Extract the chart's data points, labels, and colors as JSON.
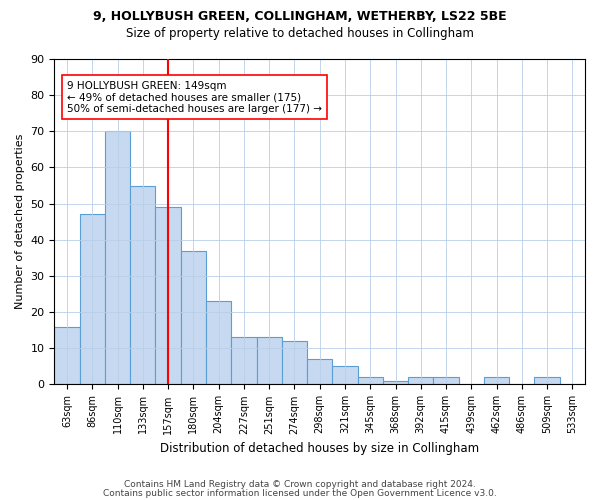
{
  "title1": "9, HOLLYBUSH GREEN, COLLINGHAM, WETHERBY, LS22 5BE",
  "title2": "Size of property relative to detached houses in Collingham",
  "xlabel": "Distribution of detached houses by size in Collingham",
  "ylabel": "Number of detached properties",
  "categories": [
    "63sqm",
    "86sqm",
    "110sqm",
    "133sqm",
    "157sqm",
    "180sqm",
    "204sqm",
    "227sqm",
    "251sqm",
    "274sqm",
    "298sqm",
    "321sqm",
    "345sqm",
    "368sqm",
    "392sqm",
    "415sqm",
    "439sqm",
    "462sqm",
    "486sqm",
    "509sqm",
    "533sqm"
  ],
  "values": [
    16,
    47,
    70,
    55,
    49,
    37,
    23,
    13,
    13,
    12,
    7,
    5,
    2,
    1,
    2,
    2,
    0,
    2,
    0,
    2,
    0
  ],
  "bar_color": "#c6d9f0",
  "bar_edge_color": "#5a9fd4",
  "vline_x": 4,
  "vline_color": "red",
  "annotation_text": "9 HOLLYBUSH GREEN: 149sqm\n← 49% of detached houses are smaller (175)\n50% of semi-detached houses are larger (177) →",
  "annotation_box_color": "white",
  "annotation_box_edge_color": "red",
  "ylim": [
    0,
    90
  ],
  "yticks": [
    0,
    10,
    20,
    30,
    40,
    50,
    60,
    70,
    80,
    90
  ],
  "footer1": "Contains HM Land Registry data © Crown copyright and database right 2024.",
  "footer2": "Contains public sector information licensed under the Open Government Licence v3.0.",
  "bg_color": "white",
  "grid_color": "#b8cfe8"
}
